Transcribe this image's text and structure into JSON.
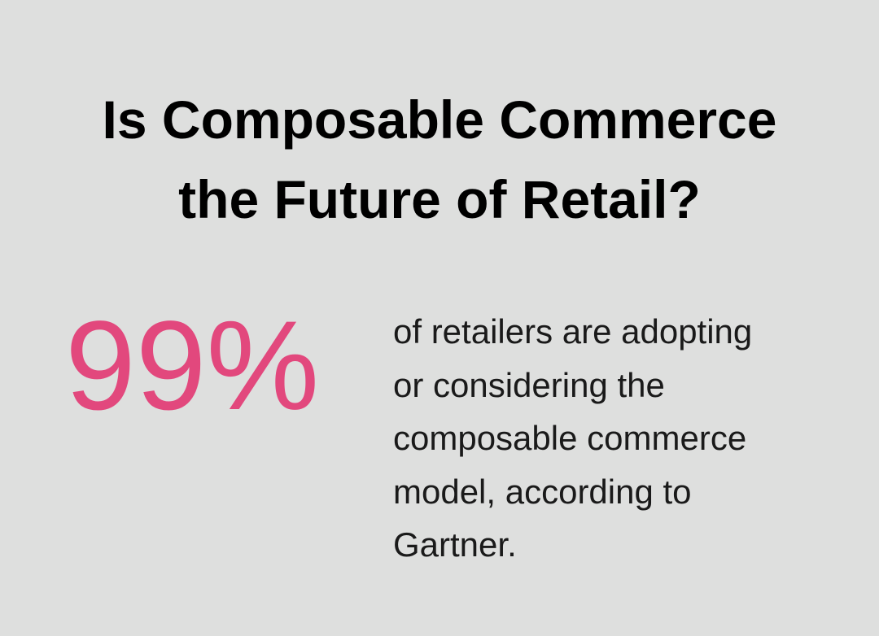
{
  "header": {
    "title_lines": [
      "Is Composable Commerce",
      "the Future of Retail?"
    ]
  },
  "stat": {
    "figure": "99%",
    "description_lines": [
      "of retailers are adopting",
      "or considering the",
      "composable commerce",
      "model, according to",
      "Gartner."
    ]
  }
}
